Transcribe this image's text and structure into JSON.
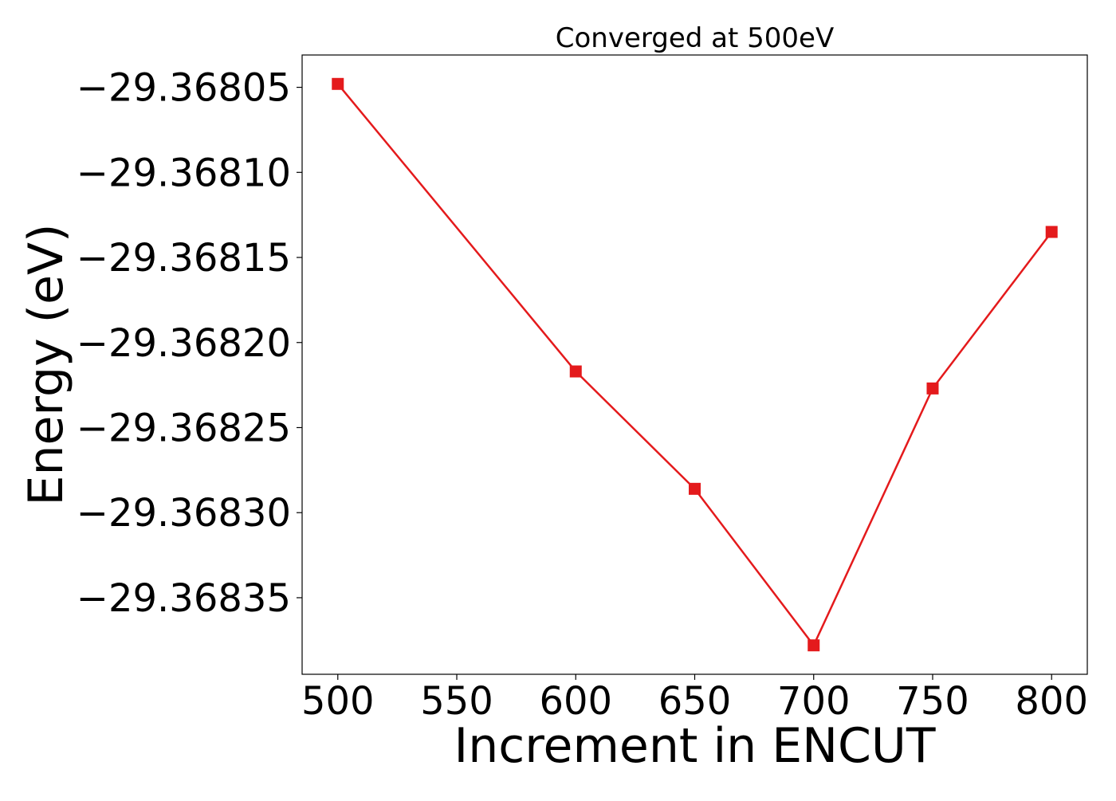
{
  "chart_data": {
    "type": "line",
    "title": "Converged at 500eV",
    "xlabel": "Increment in ENCUT",
    "ylabel": "Energy (eV)",
    "x": [
      500,
      600,
      650,
      700,
      750,
      800
    ],
    "series": [
      {
        "values": [
          -29.368048,
          -29.368217,
          -29.368286,
          -29.368378,
          -29.368227,
          -29.368135
        ],
        "color": "#e41a1c",
        "marker": "square"
      }
    ],
    "xticks": [
      "500",
      "550",
      "600",
      "650",
      "700",
      "750",
      "800"
    ],
    "xtick_values": [
      500,
      550,
      600,
      650,
      700,
      750,
      800
    ],
    "yticks": [
      "−29.36805",
      "−29.36810",
      "−29.36815",
      "−29.36820",
      "−29.36825",
      "−29.36830",
      "−29.36835"
    ],
    "ytick_values": [
      -29.36805,
      -29.3681,
      -29.36815,
      -29.3682,
      -29.36825,
      -29.3683,
      -29.36835
    ],
    "xlim": [
      485,
      815
    ],
    "ylim": [
      -29.368395,
      -29.368031
    ],
    "grid": false,
    "legend": "none"
  }
}
